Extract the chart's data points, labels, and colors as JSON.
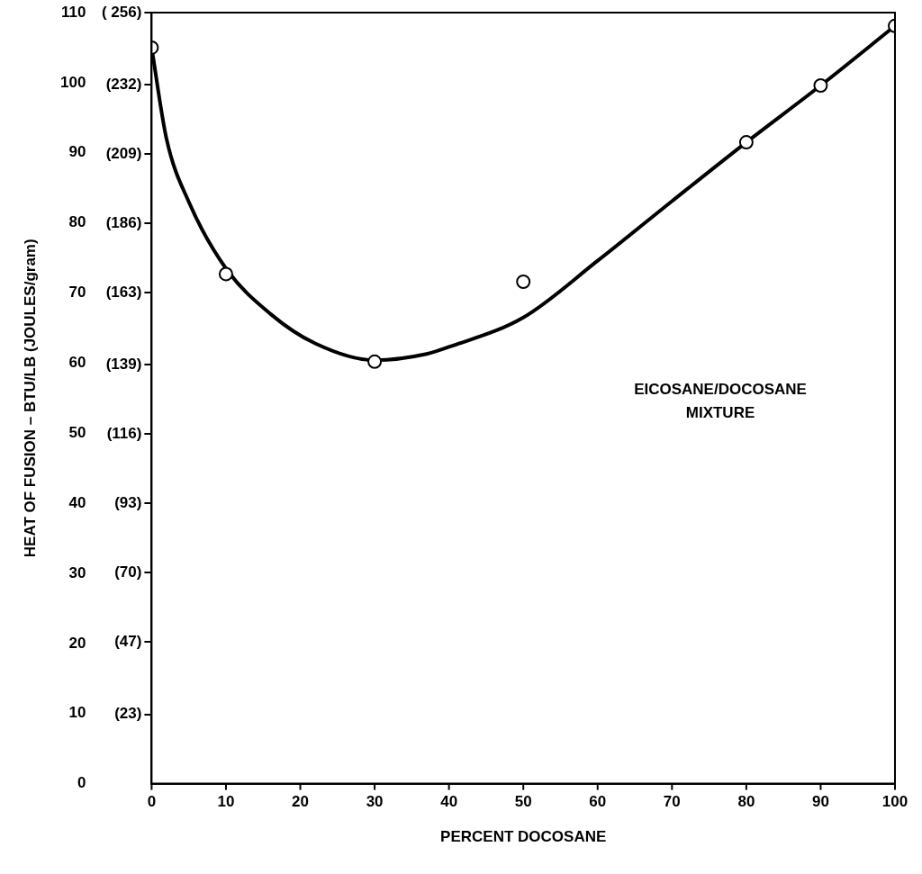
{
  "chart_data": {
    "type": "scatter",
    "xlabel": "PERCENT DOCOSANE",
    "ylabel": "HEAT OF FUSION – BTU/LB (JOULES/gram)",
    "xlim": [
      0,
      100
    ],
    "xticks": [
      0,
      10,
      20,
      30,
      40,
      50,
      60,
      70,
      80,
      90,
      100
    ],
    "ylim": [
      0,
      110
    ],
    "yticks": [
      0,
      10,
      20,
      30,
      40,
      50,
      60,
      70,
      80,
      90,
      100,
      110
    ],
    "y2lim": [
      0,
      256
    ],
    "y2ticks": [
      {
        "value": 23,
        "label": "(23)"
      },
      {
        "value": 47,
        "label": "(47)"
      },
      {
        "value": 70,
        "label": "(70)"
      },
      {
        "value": 93,
        "label": "(93)"
      },
      {
        "value": 116,
        "label": "(116)"
      },
      {
        "value": 139,
        "label": "(139)"
      },
      {
        "value": 163,
        "label": "(163)"
      },
      {
        "value": 186,
        "label": "(186)"
      },
      {
        "value": 209,
        "label": "(209)"
      },
      {
        "value": 232,
        "label": "(232)"
      },
      {
        "value": 256,
        "label": "( 256)"
      }
    ],
    "grid": false,
    "legend": false,
    "marker": "circle",
    "annotations": [
      "EICOSANE/DOCOSANE MIXTURE"
    ],
    "series": [
      {
        "color": "#000000",
        "x": [
          0,
          10,
          30,
          50,
          80,
          90,
          100
        ],
        "values": [
          105,
          72.7,
          60.2,
          71.6,
          91.5,
          99.6,
          108.1
        ]
      },
      {
        "type": "line",
        "color": "#000000",
        "marker": "none",
        "line_style": "solid",
        "x": [
          0,
          2,
          5,
          10,
          16,
          22,
          30,
          37,
          40,
          50,
          60,
          70,
          80,
          90,
          100
        ],
        "values": [
          105,
          92,
          83,
          73.5,
          67,
          62.8,
          60.4,
          61.3,
          62.3,
          66.5,
          74.6,
          83.1,
          91.5,
          99.6,
          108.1
        ]
      }
    ]
  }
}
